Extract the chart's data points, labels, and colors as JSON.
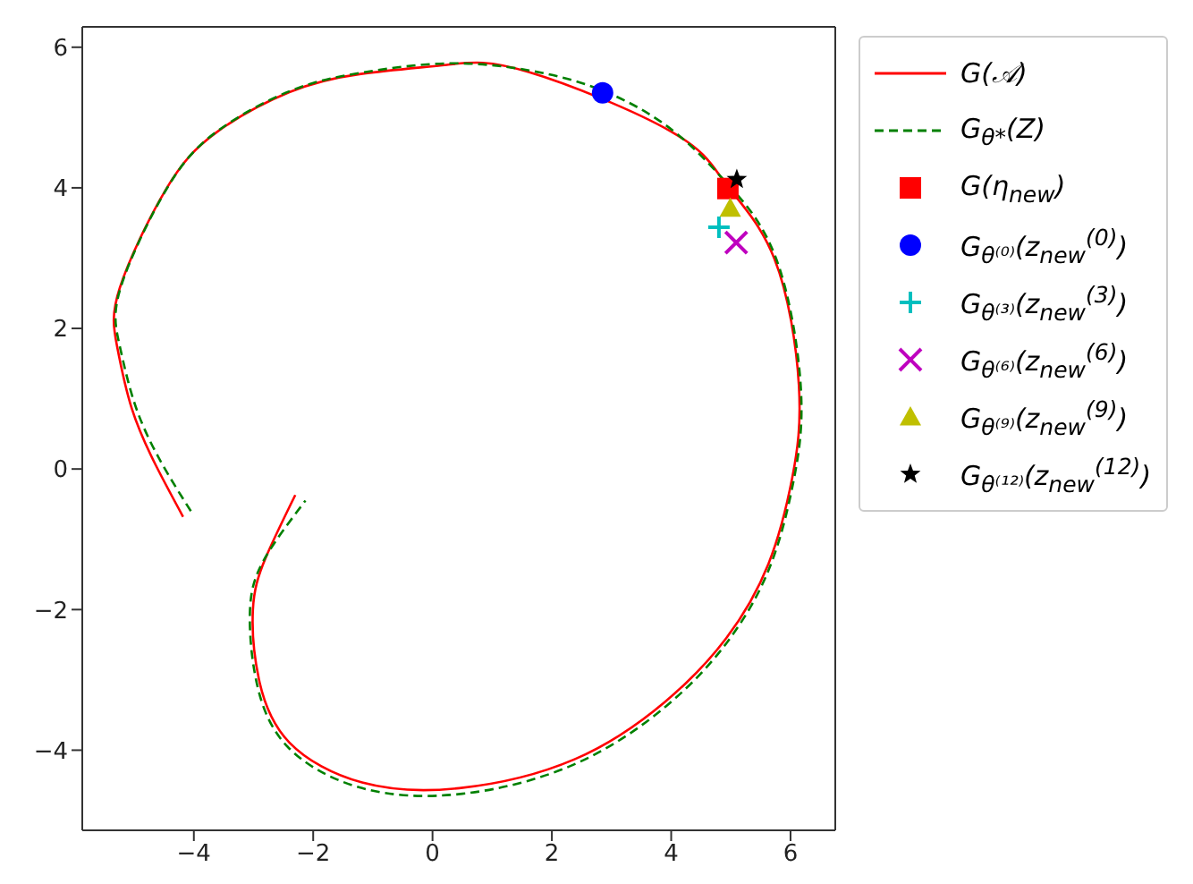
{
  "chart_data": {
    "type": "scatter",
    "xlim": [
      -5.87,
      6.75
    ],
    "ylim": [
      -5.14,
      6.29
    ],
    "xticks": [
      -4,
      -2,
      0,
      2,
      4,
      6
    ],
    "yticks": [
      -4,
      -2,
      0,
      2,
      4,
      6
    ],
    "grid": false,
    "legend": "right",
    "series": [
      {
        "name": "G(𝒜)",
        "type": "line",
        "color": "#ff0000",
        "line_style": "solid",
        "marker": "none",
        "x": [
          -4.18,
          -4.63,
          -5.04,
          -5.29,
          -5.24,
          -4.48,
          -3.62,
          -2.4,
          -1.2,
          0.24,
          1.6,
          4.0,
          4.92,
          5.73,
          6.14,
          6.03,
          5.63,
          4.92,
          3.9,
          2.38,
          0.45,
          -1.18,
          -2.4,
          -2.91,
          -3.01,
          -2.8,
          -2.3
        ],
        "values": [
          -0.68,
          0.04,
          0.86,
          1.76,
          2.58,
          3.96,
          4.79,
          5.36,
          5.62,
          5.75,
          5.65,
          4.8,
          4.05,
          2.99,
          1.19,
          -0.12,
          -1.35,
          -2.41,
          -3.31,
          -4.13,
          -4.54,
          -4.46,
          -3.89,
          -2.99,
          -2.0,
          -1.27,
          -0.37
        ]
      },
      {
        "name": "G$_{θ*}$(Z)",
        "type": "line",
        "color": "#008000",
        "line_style": "dashed",
        "marker": "none",
        "x": [
          -4.05,
          -4.55,
          -4.98,
          -5.25,
          -5.22,
          -4.46,
          -3.6,
          -2.38,
          -1.18,
          0.26,
          1.62,
          2.86,
          4.02,
          4.94,
          5.76,
          6.17,
          6.06,
          5.66,
          4.95,
          3.92,
          2.38,
          0.5,
          -1.18,
          -2.43,
          -2.95,
          -3.06,
          -2.83,
          -2.13
        ],
        "values": [
          -0.6,
          0.1,
          0.9,
          1.78,
          2.6,
          3.98,
          4.81,
          5.38,
          5.64,
          5.77,
          5.67,
          5.38,
          4.82,
          4.06,
          2.99,
          1.19,
          -0.13,
          -1.38,
          -2.45,
          -3.37,
          -4.2,
          -4.62,
          -4.54,
          -3.95,
          -3.03,
          -2.03,
          -1.3,
          -0.45
        ]
      },
      {
        "name": "G(η$_{new}$)",
        "color": "#ff0000",
        "marker": "square",
        "x": [
          4.95
        ],
        "values": [
          3.99
        ]
      },
      {
        "name": "G$_{θ⁽⁰⁾}$(z$_{new}$$^{(0)}$)",
        "color": "#0000ff",
        "marker": "circle",
        "x": [
          2.85
        ],
        "values": [
          5.35
        ]
      },
      {
        "name": "G$_{θ⁽³⁾}$(z$_{new}$$^{(3)}$)",
        "color": "#00bfbf",
        "marker": "plus",
        "x": [
          4.8
        ],
        "values": [
          3.44
        ]
      },
      {
        "name": "G$_{θ⁽⁶⁾}$(z$_{new}$$^{(6)}$)",
        "color": "#bf00bf",
        "marker": "cross",
        "x": [
          5.09
        ],
        "values": [
          3.22
        ]
      },
      {
        "name": "G$_{θ⁽⁹⁾}$(z$_{new}$$^{(9)}$)",
        "color": "#bfbf00",
        "marker": "triangle",
        "x": [
          4.99
        ],
        "values": [
          3.71
        ]
      },
      {
        "name": "G$_{θ⁽¹²⁾}$(z$_{new}$$^{(12)}$)",
        "color": "#000000",
        "marker": "star",
        "x": [
          5.1
        ],
        "values": [
          4.12
        ]
      }
    ]
  }
}
